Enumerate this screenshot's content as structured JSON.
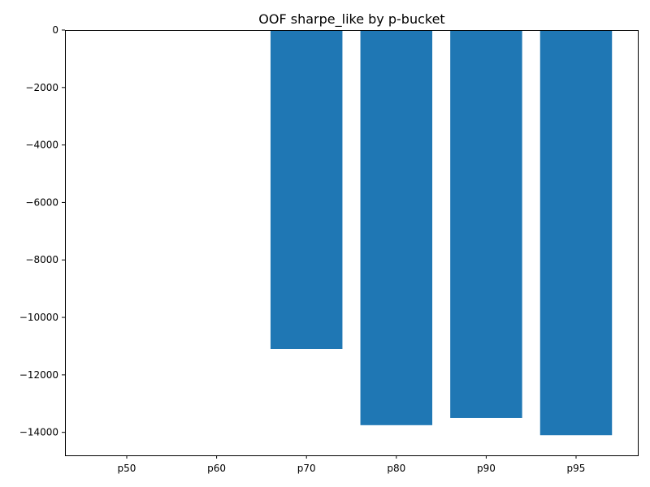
{
  "chart_data": {
    "type": "bar",
    "title": "OOF sharpe_like by p-bucket",
    "xlabel": "",
    "ylabel": "",
    "categories": [
      "p50",
      "p60",
      "p70",
      "p80",
      "p90",
      "p95"
    ],
    "values": [
      0,
      0,
      -11100,
      -13750,
      -13500,
      -14100
    ],
    "ylim": [
      -14800,
      0
    ],
    "yticks": [
      0,
      -2000,
      -4000,
      -6000,
      -8000,
      -10000,
      -12000,
      -14000
    ],
    "ytick_labels": [
      "0",
      "−2000",
      "−4000",
      "−6000",
      "−8000",
      "−10000",
      "−12000",
      "−14000"
    ],
    "bar_color": "#1f77b4",
    "grid": false,
    "legend": false
  }
}
